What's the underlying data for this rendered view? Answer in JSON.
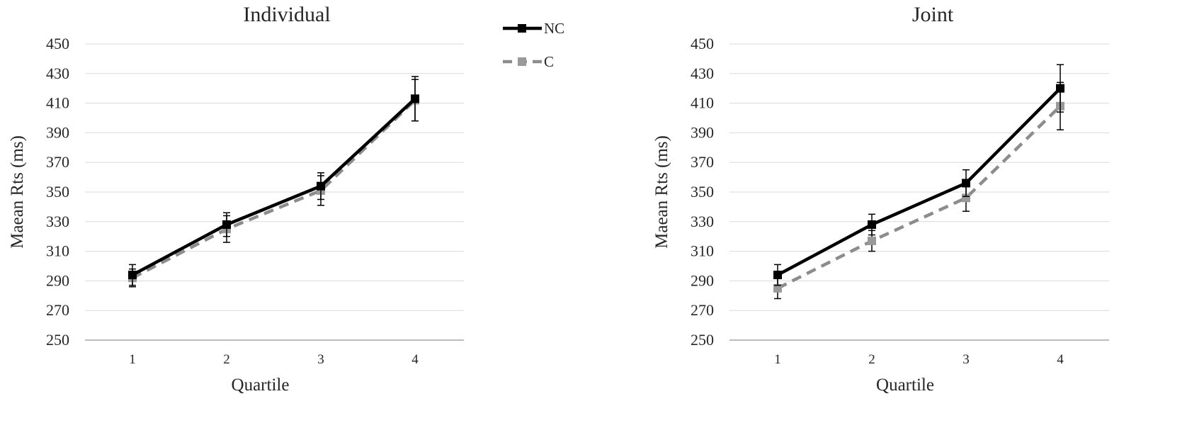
{
  "legend": {
    "items": [
      {
        "key": "nc",
        "label": "NC",
        "color": "#000000",
        "dash": "solid"
      },
      {
        "key": "c",
        "label": "C",
        "color": "#8c8c8c",
        "dash": "dashed"
      }
    ]
  },
  "chart_data": [
    {
      "type": "line",
      "title": "Individual",
      "xlabel": "Quartile",
      "ylabel": "Maean Rts (ms)",
      "ylim": [
        250,
        450
      ],
      "yticks": [
        250,
        270,
        290,
        310,
        330,
        350,
        370,
        390,
        410,
        430,
        450
      ],
      "categories": [
        "1",
        "2",
        "3",
        "4"
      ],
      "grid": "horizontal",
      "series": [
        {
          "name": "NC",
          "values": [
            294,
            328,
            354,
            413
          ],
          "errors": [
            7,
            8,
            9,
            15
          ]
        },
        {
          "name": "C",
          "values": [
            292,
            325,
            351,
            412
          ],
          "errors": [
            6,
            9,
            10,
            14
          ]
        }
      ]
    },
    {
      "type": "line",
      "title": "Joint",
      "xlabel": "Quartile",
      "ylabel": "Maean Rts (ms)",
      "ylim": [
        250,
        450
      ],
      "yticks": [
        250,
        270,
        290,
        310,
        330,
        350,
        370,
        390,
        410,
        430,
        450
      ],
      "categories": [
        "1",
        "2",
        "3",
        "4"
      ],
      "grid": "horizontal",
      "series": [
        {
          "name": "NC",
          "values": [
            294,
            328,
            356,
            420
          ],
          "errors": [
            7,
            7,
            9,
            16
          ]
        },
        {
          "name": "C",
          "values": [
            285,
            317,
            346,
            408
          ],
          "errors": [
            7,
            7,
            9,
            16
          ]
        }
      ]
    }
  ]
}
